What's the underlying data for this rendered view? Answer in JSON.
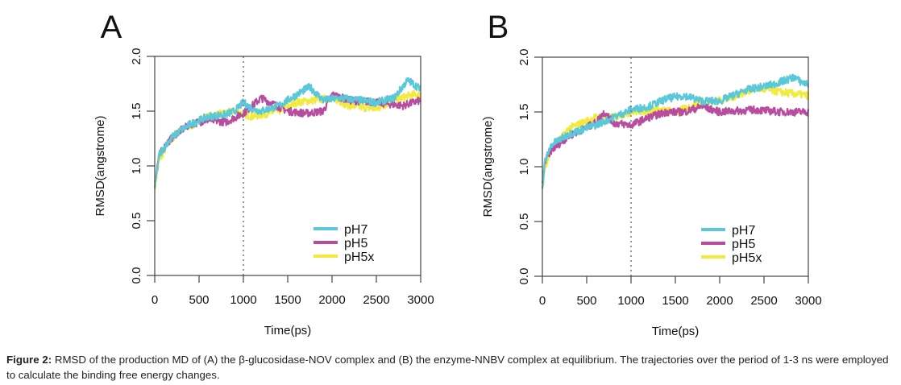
{
  "chart_data": [
    {
      "type": "line",
      "panel_label": "A",
      "title": "",
      "xlabel": "Time(ps)",
      "ylabel": "RMSD(angstrome)",
      "xlim": [
        0,
        3000
      ],
      "ylim": [
        0,
        2.0
      ],
      "xticks": [
        0,
        500,
        1000,
        1500,
        2000,
        2500,
        3000
      ],
      "xtick_labels": [
        "0",
        "500",
        "1000",
        "1500",
        "2000",
        "2500",
        "3000"
      ],
      "yticks": [
        0,
        0.5,
        1.0,
        1.5,
        2.0
      ],
      "ytick_labels": [
        "0.0",
        "0.5",
        "1.0",
        "1.5",
        "2.0"
      ],
      "vline": {
        "x": 1000,
        "style": "dotted"
      },
      "grid": false,
      "legend_position": "bottom-right",
      "series": [
        {
          "name": "pH7",
          "color": "#5BC8DA",
          "x": [
            0,
            50,
            150,
            250,
            400,
            600,
            800,
            900,
            1000,
            1100,
            1200,
            1400,
            1600,
            1700,
            1750,
            1900,
            2100,
            2300,
            2500,
            2700,
            2850,
            2900,
            3000
          ],
          "y": [
            0.8,
            1.1,
            1.22,
            1.3,
            1.38,
            1.45,
            1.47,
            1.5,
            1.58,
            1.52,
            1.5,
            1.55,
            1.65,
            1.7,
            1.72,
            1.6,
            1.62,
            1.6,
            1.58,
            1.62,
            1.78,
            1.76,
            1.7
          ]
        },
        {
          "name": "pH5",
          "color": "#B84DA0",
          "x": [
            0,
            50,
            150,
            250,
            400,
            600,
            800,
            1000,
            1200,
            1300,
            1500,
            1700,
            1900,
            2000,
            2200,
            2500,
            2800,
            3000
          ],
          "y": [
            0.85,
            1.1,
            1.22,
            1.3,
            1.38,
            1.42,
            1.4,
            1.48,
            1.62,
            1.58,
            1.5,
            1.48,
            1.5,
            1.65,
            1.6,
            1.58,
            1.55,
            1.6
          ]
        },
        {
          "name": "pH5x",
          "color": "#F2EA3C",
          "x": [
            0,
            50,
            150,
            250,
            400,
            600,
            900,
            1100,
            1400,
            1600,
            1800,
            2000,
            2200,
            2500,
            2700,
            2900,
            3000
          ],
          "y": [
            0.8,
            1.05,
            1.2,
            1.3,
            1.36,
            1.45,
            1.5,
            1.45,
            1.5,
            1.58,
            1.6,
            1.62,
            1.55,
            1.52,
            1.6,
            1.65,
            1.65
          ]
        }
      ]
    },
    {
      "type": "line",
      "panel_label": "B",
      "title": "",
      "xlabel": "Time(ps)",
      "ylabel": "RMSD(angstrome)",
      "xlim": [
        0,
        3000
      ],
      "ylim": [
        0,
        2.0
      ],
      "xticks": [
        0,
        500,
        1000,
        1500,
        2000,
        2500,
        3000
      ],
      "xtick_labels": [
        "0",
        "500",
        "1000",
        "1500",
        "2000",
        "2500",
        "3000"
      ],
      "yticks": [
        0,
        0.5,
        1.0,
        1.5,
        2.0
      ],
      "ytick_labels": [
        "0.0",
        "0.5",
        "1.0",
        "1.5",
        "2.0"
      ],
      "vline": {
        "x": 1000,
        "style": "dotted"
      },
      "grid": false,
      "legend_position": "bottom-right",
      "series": [
        {
          "name": "pH7",
          "color": "#5BC8DA",
          "x": [
            0,
            30,
            100,
            300,
            600,
            800,
            1000,
            1200,
            1400,
            1600,
            1800,
            2000,
            2300,
            2600,
            2850,
            2900,
            3000
          ],
          "y": [
            0.8,
            1.05,
            1.2,
            1.3,
            1.38,
            1.45,
            1.52,
            1.55,
            1.62,
            1.65,
            1.6,
            1.6,
            1.7,
            1.75,
            1.82,
            1.78,
            1.75
          ]
        },
        {
          "name": "pH5",
          "color": "#B84DA0",
          "x": [
            0,
            30,
            100,
            300,
            600,
            700,
            800,
            1000,
            1200,
            1400,
            1600,
            1800,
            2000,
            2400,
            2700,
            3000
          ],
          "y": [
            0.85,
            1.05,
            1.15,
            1.28,
            1.4,
            1.5,
            1.4,
            1.38,
            1.45,
            1.5,
            1.5,
            1.55,
            1.5,
            1.52,
            1.5,
            1.5
          ]
        },
        {
          "name": "pH5x",
          "color": "#F2EA3C",
          "x": [
            0,
            30,
            100,
            300,
            600,
            800,
            1000,
            1300,
            1500,
            1800,
            2100,
            2400,
            2700,
            3000
          ],
          "y": [
            0.8,
            1.0,
            1.15,
            1.35,
            1.45,
            1.45,
            1.5,
            1.52,
            1.5,
            1.58,
            1.62,
            1.72,
            1.68,
            1.65
          ]
        }
      ]
    }
  ],
  "caption": {
    "label": "Figure 2:",
    "text": " RMSD of the production MD of (A) the β-glucosidase-NOV complex and (B) the enzyme-NNBV complex at equilibrium. The trajectories over the period of 1-3 ns were employed to calculate the binding free energy changes."
  }
}
